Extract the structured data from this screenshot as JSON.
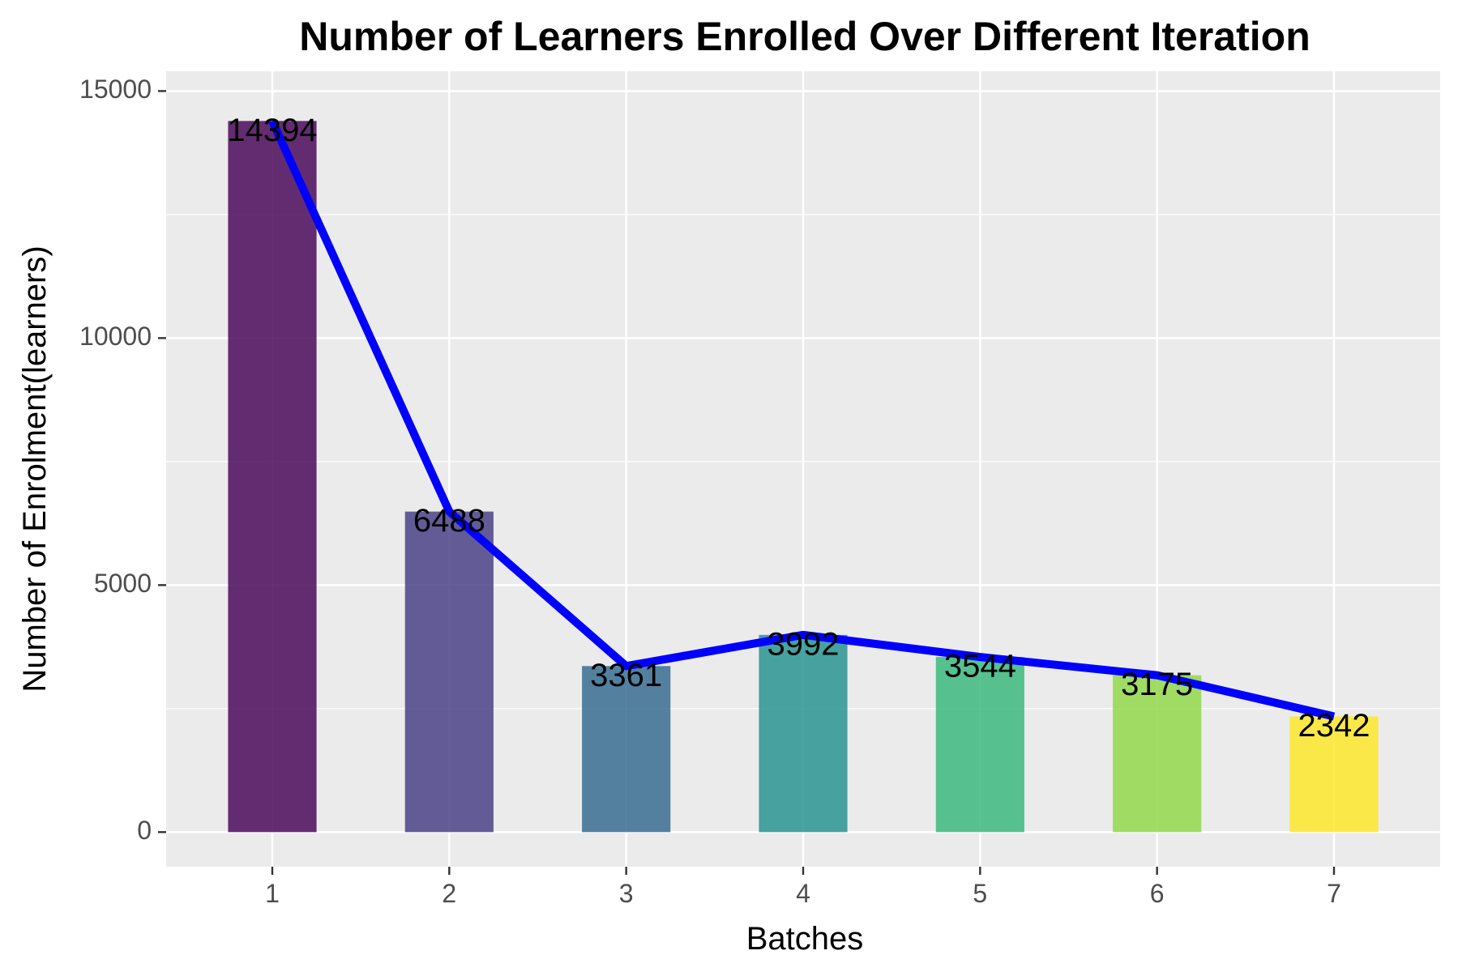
{
  "chart_data": {
    "type": "bar",
    "title": "Number of Learners Enrolled Over Different Iteration",
    "xlabel": "Batches",
    "ylabel": "Number of Enrolment(learners)",
    "categories": [
      "1",
      "2",
      "3",
      "4",
      "5",
      "6",
      "7"
    ],
    "values": [
      14394,
      6488,
      3361,
      3992,
      3544,
      3175,
      2342
    ],
    "data_labels": [
      "14394",
      "6488",
      "3361",
      "3992",
      "3544",
      "3175",
      "2342"
    ],
    "line_overlay": {
      "values": [
        14394,
        6488,
        3361,
        3992,
        3544,
        3175,
        2342
      ],
      "color": "#0000ff"
    },
    "bar_colors": [
      "#440154",
      "#443a83",
      "#31688e",
      "#21908d",
      "#35b779",
      "#8fd744",
      "#fde725"
    ],
    "ylim": [
      -700,
      15400
    ],
    "yticks": [
      0,
      5000,
      10000,
      15000
    ],
    "ytick_labels": [
      "0",
      "5000",
      "10000",
      "15000"
    ],
    "grid": true,
    "panel_background": "#ebebeb",
    "grid_color": "#ffffff"
  }
}
